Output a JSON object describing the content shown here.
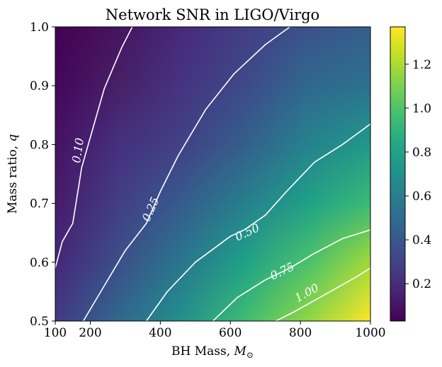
{
  "chart_data": {
    "type": "heatmap",
    "title": "Network SNR in LIGO/Virgo",
    "xlabel": "BH Mass, ",
    "xlabel_symbol": "M",
    "xlabel_subscript": "⊙",
    "ylabel": "Mass ratio, ",
    "ylabel_symbol": "q",
    "xlim": [
      100,
      1000
    ],
    "ylim": [
      0.5,
      1.0
    ],
    "x_ticks": [
      100,
      200,
      400,
      600,
      800,
      1000
    ],
    "x_tick_labels": [
      "100",
      "200",
      "400",
      "600",
      "800",
      "1000"
    ],
    "y_ticks": [
      0.5,
      0.6,
      0.7,
      0.8,
      0.9,
      1.0
    ],
    "y_tick_labels": [
      "0.5",
      "0.6",
      "0.7",
      "0.8",
      "0.9",
      "1.0"
    ],
    "colormap": "viridis",
    "colorbar": {
      "range": [
        0.03,
        1.37
      ],
      "ticks": [
        0.2,
        0.4,
        0.6,
        0.8,
        1.0,
        1.2
      ],
      "tick_labels": [
        "0.2",
        "0.4",
        "0.6",
        "0.8",
        "1.0",
        "1.2"
      ]
    },
    "contours": [
      {
        "level": 0.1,
        "label": "0.10",
        "points": [
          [
            100,
            0.59
          ],
          [
            120,
            0.635
          ],
          [
            150,
            0.666
          ],
          [
            170,
            0.74
          ],
          [
            175,
            0.76
          ],
          [
            240,
            0.895
          ],
          [
            290,
            0.965
          ],
          [
            320,
            1.0
          ]
        ],
        "label_at": [
          165,
          0.79
        ]
      },
      {
        "level": 0.25,
        "label": "0.25",
        "points": [
          [
            180,
            0.5
          ],
          [
            230,
            0.55
          ],
          [
            300,
            0.62
          ],
          [
            360,
            0.666
          ],
          [
            400,
            0.72
          ],
          [
            450,
            0.78
          ],
          [
            530,
            0.86
          ],
          [
            610,
            0.92
          ],
          [
            700,
            0.97
          ],
          [
            770,
            1.0
          ]
        ],
        "label_at": [
          372,
          0.69
        ]
      },
      {
        "level": 0.5,
        "label": "0.50",
        "points": [
          [
            360,
            0.5
          ],
          [
            420,
            0.55
          ],
          [
            500,
            0.6
          ],
          [
            600,
            0.644
          ],
          [
            640,
            0.655
          ],
          [
            700,
            0.68
          ],
          [
            760,
            0.72
          ],
          [
            840,
            0.77
          ],
          [
            920,
            0.8
          ],
          [
            1000,
            0.835
          ]
        ],
        "label_at": [
          648,
          0.651
        ]
      },
      {
        "level": 0.75,
        "label": "0.75",
        "points": [
          [
            550,
            0.5
          ],
          [
            620,
            0.54
          ],
          [
            700,
            0.57
          ],
          [
            770,
            0.59
          ],
          [
            840,
            0.615
          ],
          [
            920,
            0.64
          ],
          [
            1000,
            0.655
          ]
        ],
        "label_at": [
          748,
          0.585
        ]
      },
      {
        "level": 1.0,
        "label": "1.00",
        "points": [
          [
            730,
            0.5
          ],
          [
            780,
            0.515
          ],
          [
            840,
            0.535
          ],
          [
            900,
            0.555
          ],
          [
            960,
            0.575
          ],
          [
            1000,
            0.59
          ]
        ],
        "label_at": [
          818,
          0.548
        ]
      }
    ],
    "heatmap_colors": {
      "grid_x": [
        100,
        280,
        460,
        640,
        820,
        1000
      ],
      "grid_y": [
        1.0,
        0.9,
        0.8,
        0.7,
        0.6,
        0.5
      ],
      "rows": [
        [
          "#440154",
          "#46155f",
          "#472a7a",
          "#433e85",
          "#3b528b",
          "#355f8d"
        ],
        [
          "#45075c",
          "#472167",
          "#463480",
          "#3e4a89",
          "#31688e",
          "#2c728e"
        ],
        [
          "#461363",
          "#46307e",
          "#424186",
          "#355f8d",
          "#26828e",
          "#1f9a8a"
        ],
        [
          "#471c6b",
          "#433e85",
          "#365c8d",
          "#277f8e",
          "#1fa187",
          "#3bbb75"
        ],
        [
          "#46287a",
          "#3c4f8a",
          "#2a768e",
          "#1fa188",
          "#4ac16d",
          "#a0da39"
        ],
        [
          "#443a83",
          "#31688e",
          "#21918c",
          "#3fbc73",
          "#8fd744",
          "#fde725"
        ]
      ]
    }
  }
}
